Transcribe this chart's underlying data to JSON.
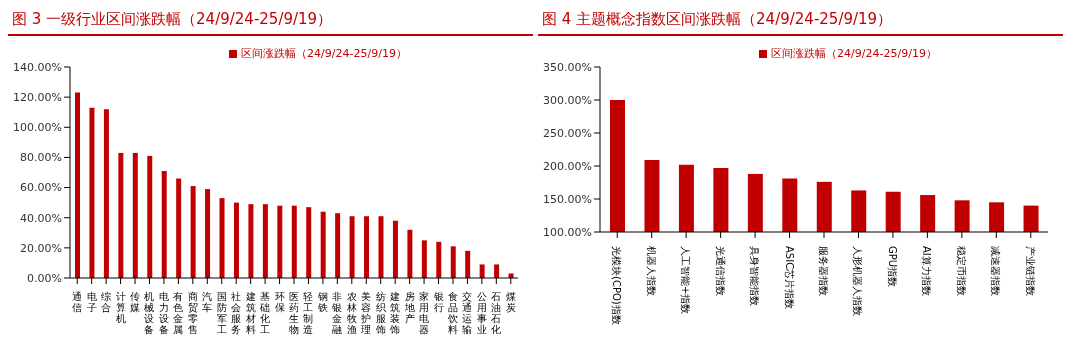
{
  "chart_data": [
    {
      "type": "bar",
      "title": "图 3 一级行业区间涨跌幅（24/9/24-25/9/19）",
      "categories": [
        "通信",
        "电子",
        "综合",
        "计算机",
        "传媒",
        "机械设备",
        "电力设备",
        "有色金属",
        "商贸零售",
        "汽车",
        "国防军工",
        "社会服务",
        "建筑材料",
        "基础化工",
        "环保",
        "医药生物",
        "轻工制造",
        "钢铁",
        "非银金融",
        "农林牧渔",
        "美容护理",
        "纺织服饰",
        "建筑装饰",
        "房地产",
        "家用电器",
        "银行",
        "食品饮料",
        "交通运输",
        "公用事业",
        "石油石化",
        "煤炭"
      ],
      "series": [
        {
          "name": "区间涨跌幅（24/9/24-25/9/19）",
          "color": "#c00000",
          "values": [
            123,
            113,
            112,
            83,
            83,
            81,
            71,
            66,
            61,
            59,
            53,
            50,
            49,
            49,
            48,
            48,
            47,
            44,
            43,
            41,
            41,
            41,
            38,
            32,
            25,
            24,
            21,
            18,
            9,
            9,
            3
          ]
        }
      ],
      "ylim": [
        0,
        140
      ],
      "yticks": [
        {
          "value": 0,
          "label": "0.00%"
        },
        {
          "value": 20,
          "label": "20.00%"
        },
        {
          "value": 40,
          "label": "40.00%"
        },
        {
          "value": 60,
          "label": "60.00%"
        },
        {
          "value": 80,
          "label": "80.00%"
        },
        {
          "value": 100,
          "label": "100.00%"
        },
        {
          "value": 120,
          "label": "120.00%"
        },
        {
          "value": 140,
          "label": "140.00%"
        }
      ],
      "legend": "top"
    },
    {
      "type": "bar",
      "title": "图 4 主题概念指数区间涨跌幅（24/9/24-25/9/19）",
      "categories": [
        "光模块(CPO)指数",
        "机器人指数",
        "人工智能+指数",
        "光通信指数",
        "具身智能指数",
        "ASIC芯片指数",
        "服务器指数",
        "人形机器人指数",
        "GPU指数",
        "AI算力指数",
        "稳定币指数",
        "减速器指数",
        "产业链指数"
      ],
      "series": [
        {
          "name": "区间涨跌幅（24/9/24-25/9/19）",
          "color": "#c00000",
          "values": [
            300,
            209,
            202,
            197,
            188,
            181,
            176,
            163,
            161,
            156,
            148,
            145,
            140
          ]
        }
      ],
      "ylim": [
        100,
        350
      ],
      "yticks": [
        {
          "value": 100,
          "label": "100.00%"
        },
        {
          "value": 150,
          "label": "150.00%"
        },
        {
          "value": 200,
          "label": "200.00%"
        },
        {
          "value": 250,
          "label": "250.00%"
        },
        {
          "value": 300,
          "label": "300.00%"
        },
        {
          "value": 350,
          "label": "350.00%"
        }
      ],
      "legend": "top"
    }
  ]
}
